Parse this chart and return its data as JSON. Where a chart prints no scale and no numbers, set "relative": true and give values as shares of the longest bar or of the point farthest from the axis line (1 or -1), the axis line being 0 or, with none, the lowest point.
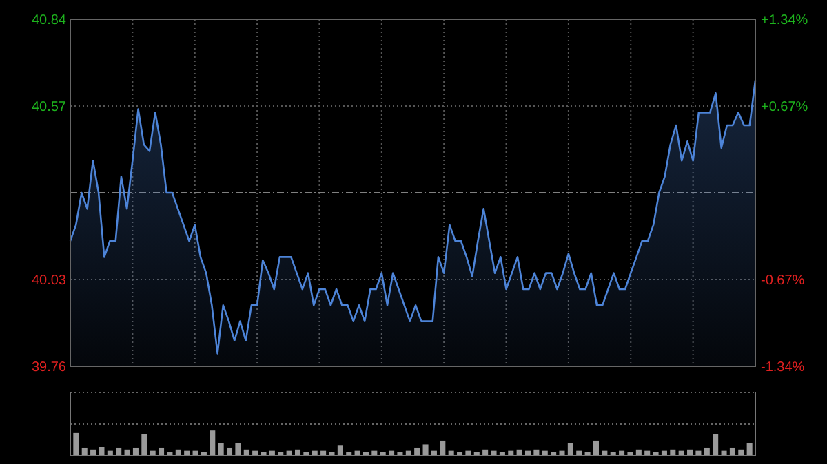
{
  "chart_data": [
    {
      "type": "area",
      "categories": [
        null,
        null,
        null,
        null,
        null,
        null,
        null,
        null,
        null,
        null,
        null,
        null,
        null,
        null,
        null,
        null,
        null,
        null,
        null,
        null,
        null,
        null,
        null,
        null,
        null,
        null,
        null,
        null,
        null,
        null,
        null,
        null,
        null,
        null,
        null,
        null,
        null,
        null,
        null,
        null,
        null,
        null,
        null,
        null,
        null,
        null,
        null,
        null,
        null,
        null,
        null,
        null,
        null,
        null,
        null,
        null,
        null,
        null,
        null,
        null,
        null,
        null,
        null,
        null,
        null,
        null,
        null,
        null,
        null,
        null,
        null,
        null,
        null,
        null,
        null,
        null,
        null,
        null,
        null,
        null,
        null,
        null,
        null,
        null,
        null,
        null,
        null,
        null,
        null,
        null,
        null,
        null,
        null,
        null,
        null,
        null,
        null,
        null,
        null,
        null,
        null,
        null,
        null,
        null,
        null,
        null,
        null,
        null,
        null,
        null,
        null,
        null,
        null,
        null,
        null,
        null,
        null,
        null,
        null,
        null,
        null,
        null
      ],
      "series": [
        {
          "color": "#4d84d8",
          "values": [
            40.15,
            40.2,
            40.3,
            40.25,
            40.4,
            40.3,
            40.1,
            40.15,
            40.15,
            40.35,
            40.25,
            40.4,
            40.56,
            40.45,
            40.43,
            40.55,
            40.45,
            40.3,
            40.3,
            40.25,
            40.2,
            40.15,
            40.2,
            40.1,
            40.05,
            39.95,
            39.8,
            39.95,
            39.9,
            39.84,
            39.9,
            39.84,
            39.95,
            39.95,
            40.09,
            40.05,
            40,
            40.1,
            40.1,
            40.1,
            40.05,
            40,
            40.05,
            39.95,
            40,
            40,
            39.95,
            40,
            39.95,
            39.95,
            39.9,
            39.95,
            39.9,
            40,
            40,
            40.05,
            39.95,
            40.05,
            40,
            39.95,
            39.9,
            39.95,
            39.9,
            39.9,
            39.9,
            40.1,
            40.05,
            40.2,
            40.15,
            40.15,
            40.1,
            40.04,
            40.15,
            40.25,
            40.15,
            40.05,
            40.1,
            40,
            40.05,
            40.1,
            40,
            40,
            40.05,
            40,
            40.05,
            40.05,
            40,
            40.05,
            40.11,
            40.05,
            40,
            40,
            40.05,
            39.95,
            39.95,
            40,
            40.05,
            40,
            40,
            40.05,
            40.1,
            40.15,
            40.15,
            40.2,
            40.3,
            40.35,
            40.45,
            40.51,
            40.4,
            40.46,
            40.4,
            40.55,
            40.55,
            40.55,
            40.61,
            40.44,
            40.51,
            40.51,
            40.55,
            40.51,
            40.51,
            40.65
          ]
        }
      ],
      "ylim": [
        39.76,
        40.84
      ],
      "yticks": [
        39.76,
        40.03,
        40.57,
        40.84
      ],
      "y2lim": [
        -1.34,
        1.34
      ],
      "y2ticks": [
        {
          "value": -1.34,
          "label": "-1.34%"
        },
        {
          "value": -0.67,
          "label": "-0.67%"
        },
        {
          "value": 0.67,
          "label": "+0.67%"
        },
        {
          "value": 1.34,
          "label": "+1.34%"
        }
      ],
      "ref_lines": [
        {
          "axis": "y",
          "value": 40.3,
          "color": "#808080",
          "line_style": "dashed"
        }
      ],
      "grid": true
    },
    {
      "type": "bar",
      "relative": true,
      "color": "#9a9a9a",
      "grid": true,
      "categories": [
        null,
        null,
        null,
        null,
        null,
        null,
        null,
        null,
        null,
        null,
        null,
        null,
        null,
        null,
        null,
        null,
        null,
        null,
        null,
        null,
        null,
        null,
        null,
        null,
        null,
        null,
        null,
        null,
        null,
        null,
        null,
        null,
        null,
        null,
        null,
        null,
        null,
        null,
        null,
        null,
        null,
        null,
        null,
        null,
        null,
        null,
        null,
        null,
        null,
        null,
        null,
        null,
        null,
        null,
        null,
        null,
        null,
        null,
        null,
        null,
        null,
        null,
        null,
        null,
        null,
        null,
        null,
        null,
        null,
        null,
        null,
        null,
        null,
        null,
        null,
        null,
        null,
        null,
        null,
        null
      ],
      "values": [
        0.9,
        0.3,
        0.25,
        0.35,
        0.2,
        0.3,
        0.25,
        0.3,
        0.85,
        0.2,
        0.3,
        0.15,
        0.25,
        0.2,
        0.2,
        0.15,
        1.0,
        0.5,
        0.3,
        0.5,
        0.25,
        0.2,
        0.15,
        0.2,
        0.15,
        0.2,
        0.25,
        0.15,
        0.2,
        0.2,
        0.15,
        0.4,
        0.15,
        0.2,
        0.15,
        0.2,
        0.15,
        0.2,
        0.15,
        0.2,
        0.3,
        0.45,
        0.2,
        0.6,
        0.2,
        0.15,
        0.2,
        0.15,
        0.25,
        0.2,
        0.15,
        0.2,
        0.25,
        0.2,
        0.25,
        0.2,
        0.15,
        0.2,
        0.5,
        0.2,
        0.15,
        0.6,
        0.2,
        0.15,
        0.2,
        0.15,
        0.25,
        0.2,
        0.15,
        0.2,
        0.25,
        0.2,
        0.25,
        0.2,
        0.3,
        0.85,
        0.2,
        0.3,
        0.25,
        0.5
      ]
    }
  ]
}
